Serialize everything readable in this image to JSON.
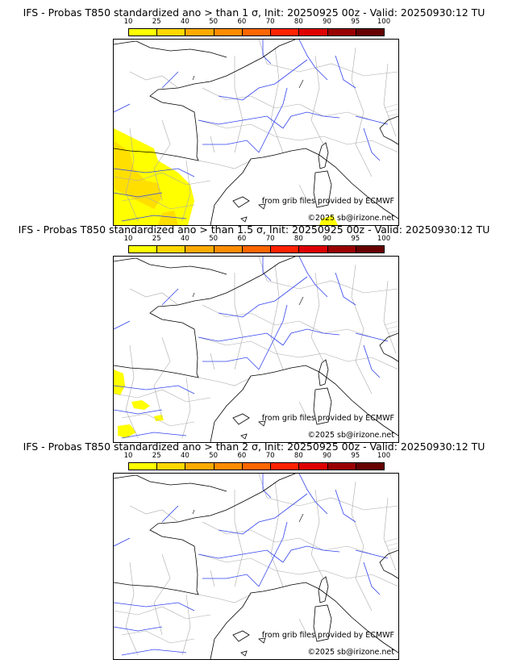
{
  "colorbar": {
    "ticks": [
      "10",
      "25",
      "40",
      "50",
      "60",
      "70",
      "80",
      "90",
      "95",
      "100"
    ],
    "colors": [
      "#ffff00",
      "#ffd700",
      "#ffaa00",
      "#ff8c00",
      "#ff6600",
      "#ff2200",
      "#dd0000",
      "#990000",
      "#660000"
    ]
  },
  "panels": [
    {
      "title": "IFS - Probas T850  standardized ano > than 1 σ, Init: 20250925 00z - Valid: 20250930:12 TU",
      "coverage": "high"
    },
    {
      "title": "IFS - Probas T850  standardized ano > than 1.5 σ, Init: 20250925 00z - Valid: 20250930:12 TU",
      "coverage": "low"
    },
    {
      "title": "IFS - Probas T850  standardized ano > than 2 σ, Init: 20250925 00z - Valid: 20250930:12 TU",
      "coverage": "none"
    }
  ],
  "credits": {
    "source": "from grib files provided by ECMWF",
    "copyright": "©2025 sb@irizone.net"
  }
}
